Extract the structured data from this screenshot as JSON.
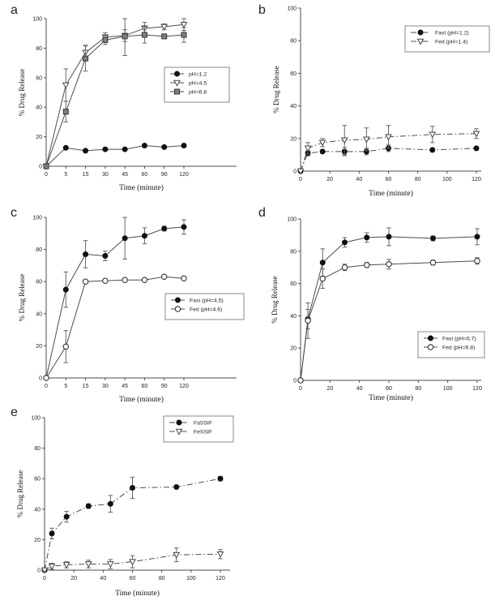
{
  "figure": {
    "background": "#ffffff",
    "ink_color": "#4d4d4d",
    "marker_color": "#111111",
    "square_fill": "#808080",
    "error_bar_color": "#666666"
  },
  "chart_data": [
    {
      "letter": "a",
      "type": "line",
      "title": "",
      "xlabel": "Time (minute)",
      "ylabel": "% Drug Release",
      "x_mode": "category",
      "x": [
        0,
        5,
        15,
        30,
        45,
        60,
        90,
        120
      ],
      "x_ticks": [
        "0",
        "5",
        "15",
        "30",
        "45",
        "60",
        "90",
        "120"
      ],
      "ylim": [
        0,
        100
      ],
      "yticks": [
        0,
        20,
        40,
        60,
        80,
        100
      ],
      "grid": false,
      "legend_position": "middle-right",
      "series": [
        {
          "name": "pH=1.2",
          "marker": "circle-filled",
          "line": "solid",
          "values": [
            0,
            12.5,
            10.5,
            11.5,
            11.5,
            14,
            13,
            14
          ],
          "errors": [
            0,
            0,
            0,
            0,
            0,
            0,
            0,
            0
          ]
        },
        {
          "name": "pH=4.5",
          "marker": "triangle-down-open",
          "line": "solid",
          "values": [
            0,
            55,
            77,
            87.5,
            88.5,
            93.5,
            94.5,
            96
          ],
          "errors": [
            0,
            11,
            5,
            3,
            4,
            4,
            2,
            4
          ]
        },
        {
          "name": "pH=6.8",
          "marker": "square-filled",
          "line": "solid",
          "values": [
            0,
            37,
            73,
            85.5,
            88,
            89,
            88,
            89
          ],
          "errors": [
            0,
            7,
            8.5,
            3,
            13,
            5.5,
            1,
            5
          ]
        }
      ]
    },
    {
      "letter": "b",
      "type": "line",
      "title": "",
      "xlabel": "Time (minute)",
      "ylabel": "% Drug Release",
      "x_mode": "linear",
      "x": [
        0,
        5,
        15,
        30,
        45,
        60,
        90,
        120
      ],
      "x_ticks": [
        "0",
        "20",
        "40",
        "60",
        "80",
        "100",
        "120"
      ],
      "x_tick_values": [
        0,
        20,
        40,
        60,
        80,
        100,
        120
      ],
      "ylim": [
        0,
        100
      ],
      "yticks": [
        0,
        20,
        40,
        60,
        80,
        100
      ],
      "grid": false,
      "legend_position": "top-right",
      "series": [
        {
          "name": "Fast (pH=1.2)",
          "marker": "circle-filled",
          "line": "dashdot",
          "values": [
            0,
            11,
            12,
            12,
            12,
            14,
            13,
            14
          ],
          "errors": [
            0,
            1.5,
            1,
            2.5,
            2,
            2,
            1,
            1
          ]
        },
        {
          "name": "Fed (pH=1.4)",
          "marker": "triangle-down-open",
          "line": "dashdot",
          "values": [
            0,
            14,
            17.5,
            19,
            19.5,
            21,
            22.5,
            23
          ],
          "errors": [
            0,
            3.5,
            2.5,
            9,
            7,
            7,
            5,
            3
          ]
        }
      ]
    },
    {
      "letter": "c",
      "type": "line",
      "title": "",
      "xlabel": "Time (minute)",
      "ylabel": "% Drug Release",
      "x_mode": "category",
      "x": [
        0,
        5,
        15,
        30,
        45,
        60,
        90,
        120
      ],
      "x_ticks": [
        "0",
        "5",
        "15",
        "30",
        "45",
        "60",
        "90",
        "120"
      ],
      "ylim": [
        0,
        100
      ],
      "yticks": [
        0,
        20,
        40,
        60,
        80,
        100
      ],
      "grid": false,
      "legend_position": "middle-right",
      "series": [
        {
          "name": "Fast (pH=4.5)",
          "marker": "circle-filled",
          "line": "solid",
          "values": [
            0,
            55,
            77,
            76,
            87,
            88.5,
            93,
            94
          ],
          "errors": [
            0,
            11,
            8.5,
            3,
            13,
            5,
            1.5,
            4.5
          ]
        },
        {
          "name": "Fed (pH=4.6)",
          "marker": "circle-open",
          "line": "solid",
          "values": [
            0,
            19.5,
            60,
            60.5,
            61,
            61,
            63,
            62
          ],
          "errors": [
            0,
            10,
            1,
            1,
            1,
            1,
            1,
            1
          ]
        }
      ]
    },
    {
      "letter": "d",
      "type": "line",
      "title": "",
      "xlabel": "Time (minute)",
      "ylabel": "% Drug Release",
      "x_mode": "linear",
      "x": [
        0,
        5,
        15,
        30,
        45,
        60,
        90,
        120
      ],
      "x_ticks": [
        "0",
        "20",
        "40",
        "60",
        "80",
        "100",
        "120"
      ],
      "x_tick_values": [
        0,
        20,
        40,
        60,
        80,
        100,
        120
      ],
      "ylim": [
        0,
        100
      ],
      "yticks": [
        0,
        20,
        40,
        60,
        80,
        100
      ],
      "grid": false,
      "legend_position": "bottom-right",
      "series": [
        {
          "name": "Fast (pH=6.7)",
          "marker": "circle-filled",
          "line": "solid",
          "values": [
            0,
            38,
            73,
            85.5,
            88.5,
            89,
            88,
            89
          ],
          "errors": [
            0,
            6,
            8.5,
            3,
            3,
            5.5,
            1.5,
            5
          ]
        },
        {
          "name": "Fed (pH=6.8)",
          "marker": "circle-open",
          "line": "solid",
          "values": [
            0,
            37,
            63,
            70,
            71.5,
            72,
            73,
            74
          ],
          "errors": [
            0,
            11,
            6,
            2,
            1.5,
            3,
            1.5,
            2
          ]
        }
      ]
    },
    {
      "letter": "e",
      "type": "line",
      "title": "",
      "xlabel": "Time (minute)",
      "ylabel": "% Drug Release",
      "x_mode": "linear",
      "x": [
        0,
        5,
        15,
        30,
        45,
        60,
        90,
        120
      ],
      "x_ticks": [
        "0",
        "20",
        "40",
        "60",
        "80",
        "100",
        "120"
      ],
      "x_tick_values": [
        0,
        20,
        40,
        60,
        80,
        100,
        120
      ],
      "ylim": [
        0,
        100
      ],
      "yticks": [
        0,
        20,
        40,
        60,
        80,
        100
      ],
      "grid": false,
      "legend_position": "top-right",
      "series": [
        {
          "name": "FaSSIF",
          "marker": "circle-filled",
          "line": "dashdot",
          "values": [
            0,
            24,
            35,
            42,
            43.5,
            54,
            54.5,
            60
          ],
          "errors": [
            0,
            3.5,
            3.5,
            1.5,
            5.5,
            7,
            1,
            1.5
          ]
        },
        {
          "name": "FeSSIF",
          "marker": "triangle-down-open",
          "line": "dashdot",
          "values": [
            0,
            2.5,
            3.5,
            4,
            4,
            5.5,
            10,
            10.5
          ],
          "errors": [
            0,
            2,
            2,
            2.5,
            3,
            4,
            4.5,
            3
          ]
        }
      ]
    }
  ]
}
